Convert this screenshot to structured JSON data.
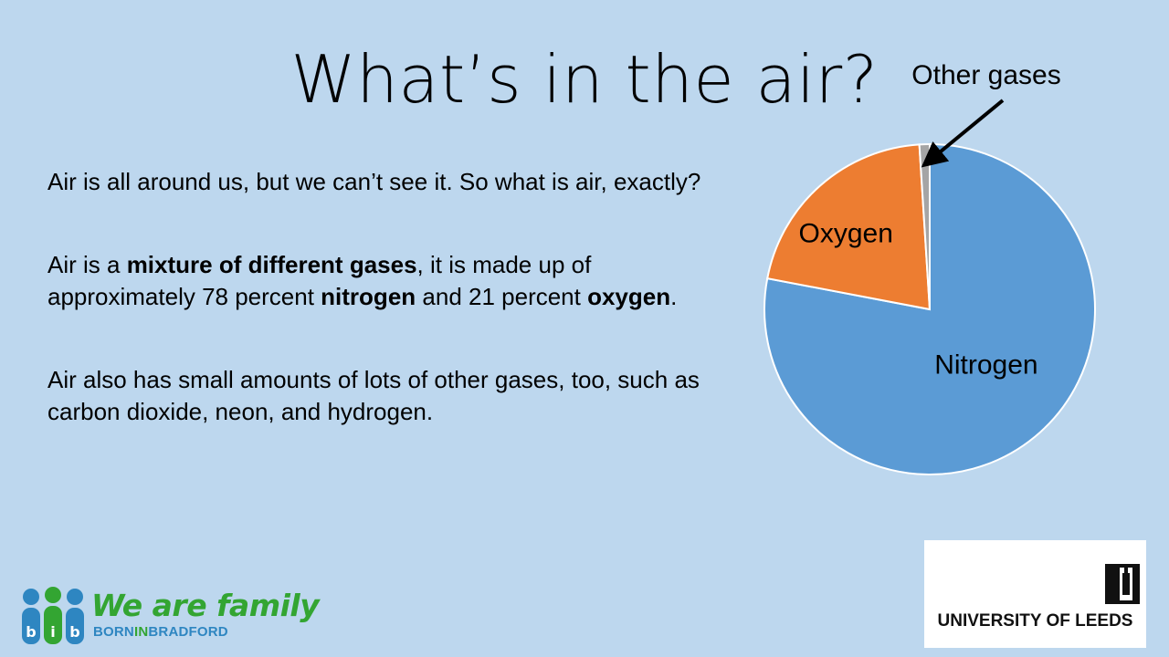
{
  "slide": {
    "title": "What’s in the air?",
    "paragraphs": [
      [
        {
          "text": "Air is all around us, but we can’t see it. So what is air, exactly?",
          "bold": false
        }
      ],
      [
        {
          "text": "Air is a ",
          "bold": false
        },
        {
          "text": "mixture of different gases",
          "bold": true
        },
        {
          "text": ", it is made up of approximately 78 percent ",
          "bold": false
        },
        {
          "text": "nitrogen",
          "bold": true
        },
        {
          "text": " and 21 percent ",
          "bold": false
        },
        {
          "text": "oxygen",
          "bold": true
        },
        {
          "text": ".",
          "bold": false
        }
      ],
      [
        {
          "text": "Air also has small amounts of lots of other gases, too, such as carbon dioxide, neon, and hydrogen.",
          "bold": false
        }
      ]
    ]
  },
  "chart_data": {
    "type": "pie",
    "title": "",
    "slices": [
      {
        "name": "Nitrogen",
        "value": 78,
        "color": "#5b9bd5"
      },
      {
        "name": "Oxygen",
        "value": 21,
        "color": "#ed7d31"
      },
      {
        "name": "Other gases",
        "value": 1,
        "color": "#a5a5a5"
      }
    ],
    "start_angle_deg": 0,
    "direction": "clockwise",
    "callout": {
      "label": "Other gases",
      "points_to": "Other gases"
    }
  },
  "logos": {
    "bib": {
      "letters": [
        "b",
        "i",
        "b"
      ],
      "tagline": "We are family",
      "sub_part1": "BORN",
      "sub_part2": "IN",
      "sub_part3": "BRADFORD",
      "colors": {
        "blue": "#2e86c1",
        "green": "#33a532"
      }
    },
    "leeds": {
      "text": "UNIVERSITY OF LEEDS"
    }
  }
}
